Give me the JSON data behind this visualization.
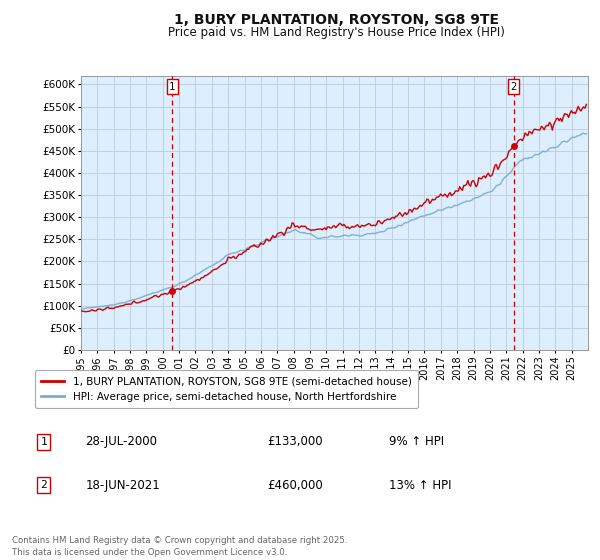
{
  "title": "1, BURY PLANTATION, ROYSTON, SG8 9TE",
  "subtitle": "Price paid vs. HM Land Registry's House Price Index (HPI)",
  "ylabel_ticks": [
    "£0",
    "£50K",
    "£100K",
    "£150K",
    "£200K",
    "£250K",
    "£300K",
    "£350K",
    "£400K",
    "£450K",
    "£500K",
    "£550K",
    "£600K"
  ],
  "ytick_values": [
    0,
    50000,
    100000,
    150000,
    200000,
    250000,
    300000,
    350000,
    400000,
    450000,
    500000,
    550000,
    600000
  ],
  "ylim": [
    0,
    620000
  ],
  "xlim_start": 1995.0,
  "xlim_end": 2026.0,
  "marker1_x": 2000.57,
  "marker1_y": 133000,
  "marker2_x": 2021.46,
  "marker2_y": 460000,
  "vline1_x": 2000.57,
  "vline2_x": 2021.46,
  "legend_line1": "1, BURY PLANTATION, ROYSTON, SG8 9TE (semi-detached house)",
  "legend_line2": "HPI: Average price, semi-detached house, North Hertfordshire",
  "annotation1_label": "1",
  "annotation1_date": "28-JUL-2000",
  "annotation1_price": "£133,000",
  "annotation1_hpi": "9% ↑ HPI",
  "annotation2_label": "2",
  "annotation2_date": "18-JUN-2021",
  "annotation2_price": "£460,000",
  "annotation2_hpi": "13% ↑ HPI",
  "footer": "Contains HM Land Registry data © Crown copyright and database right 2025.\nThis data is licensed under the Open Government Licence v3.0.",
  "line_color_red": "#cc0000",
  "line_color_blue": "#7aadcf",
  "vline_color": "#cc0000",
  "bg_chart": "#ddeeff",
  "background_color": "#ffffff",
  "grid_color": "#c0d0e0"
}
